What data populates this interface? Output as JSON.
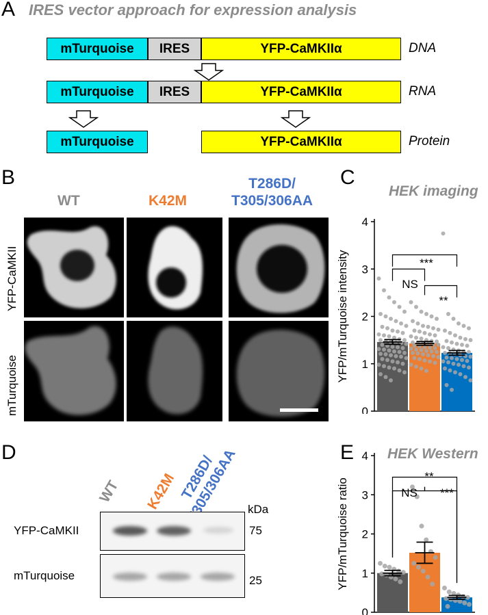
{
  "panelA": {
    "letter": "A",
    "title": "IRES vector approach for expression analysis",
    "rows": [
      {
        "label": "DNA",
        "segments": [
          "mTurquoise",
          "IRES",
          "YFP-CaMKIIα"
        ]
      },
      {
        "label": "RNA",
        "segments": [
          "mTurquoise",
          "IRES",
          "YFP-CaMKIIα"
        ]
      },
      {
        "label": "Protein",
        "segments": [
          "mTurquoise",
          "YFP-CaMKIIα"
        ]
      }
    ]
  },
  "panelB": {
    "letter": "B",
    "conditions": [
      {
        "name": "WT",
        "color": "#8c8c8c"
      },
      {
        "name": "K42M",
        "color": "#ed7d31"
      },
      {
        "name": "T286D/\nT305/306AA",
        "color": "#4472c4"
      }
    ],
    "row_labels": [
      "YFP-CaMKII",
      "mTurquoise"
    ]
  },
  "panelC": {
    "letter": "C",
    "title": "HEK imaging",
    "significance": [
      "***",
      "NS",
      "**"
    ]
  },
  "panelD": {
    "letter": "D",
    "lanes": [
      {
        "name": "WT",
        "color": "#8c8c8c"
      },
      {
        "name": "K42M",
        "color": "#ed7d31"
      },
      {
        "name": "T286D/\nT305/306AA",
        "color": "#4472c4"
      }
    ],
    "unit": "kDa",
    "rows": [
      {
        "label": "YFP-CaMKII",
        "marker": "75",
        "intensity": [
          0.85,
          0.8,
          0.15
        ]
      },
      {
        "label": "mTurquoise",
        "marker": "25",
        "intensity": [
          0.45,
          0.45,
          0.45
        ]
      }
    ]
  },
  "panelE": {
    "letter": "E",
    "title": "HEK Western",
    "significance": [
      "**",
      "NS",
      "***"
    ]
  },
  "chart_data": [
    {
      "type": "bar",
      "title": "HEK imaging",
      "ylabel": "YFP/mTurquoise intensity",
      "categories": [
        "WT",
        "K42M",
        "T286D/T305/306AA"
      ],
      "values": [
        1.46,
        1.43,
        1.23
      ],
      "errors": [
        0.05,
        0.04,
        0.05
      ],
      "colors": [
        "#595959",
        "#ed7d31",
        "#0070c0"
      ],
      "ylim": [
        0,
        4
      ],
      "yticks": [
        "0",
        "1",
        "2",
        "3",
        "4"
      ],
      "points": [
        [
          2.8,
          2.55,
          2.4,
          2.3,
          2.2,
          2.1,
          2.05,
          2.0,
          1.95,
          1.9,
          1.85,
          1.8,
          1.78,
          1.75,
          1.7,
          1.68,
          1.65,
          1.62,
          1.6,
          1.58,
          1.55,
          1.52,
          1.5,
          1.5,
          1.48,
          1.46,
          1.45,
          1.44,
          1.42,
          1.4,
          1.38,
          1.36,
          1.35,
          1.33,
          1.31,
          1.3,
          1.28,
          1.26,
          1.25,
          1.23,
          1.21,
          1.2,
          1.18,
          1.16,
          1.15,
          1.12,
          1.1,
          1.08,
          1.05,
          1.03,
          1.0,
          0.98,
          0.95,
          0.92,
          0.9,
          0.86,
          0.82,
          0.78,
          0.72,
          0.65
        ],
        [
          2.3,
          2.2,
          2.1,
          2.05,
          2.0,
          1.95,
          1.9,
          1.85,
          1.8,
          1.78,
          1.75,
          1.72,
          1.7,
          1.68,
          1.65,
          1.62,
          1.6,
          1.58,
          1.55,
          1.53,
          1.5,
          1.48,
          1.47,
          1.45,
          1.44,
          1.43,
          1.42,
          1.41,
          1.4,
          1.38,
          1.37,
          1.35,
          1.34,
          1.33,
          1.32,
          1.3,
          1.29,
          1.27,
          1.26,
          1.25,
          1.23,
          1.22,
          1.2,
          1.18,
          1.16,
          1.14,
          1.12,
          1.1,
          1.07,
          1.05,
          1.02,
          0.98,
          0.94,
          0.9,
          0.85
        ],
        [
          3.75,
          2.05,
          1.95,
          1.85,
          1.8,
          1.75,
          1.7,
          1.65,
          1.6,
          1.55,
          1.52,
          1.5,
          1.48,
          1.45,
          1.42,
          1.4,
          1.38,
          1.35,
          1.33,
          1.3,
          1.28,
          1.26,
          1.25,
          1.23,
          1.22,
          1.2,
          1.18,
          1.16,
          1.15,
          1.13,
          1.12,
          1.1,
          1.08,
          1.06,
          1.05,
          1.03,
          1.0,
          0.98,
          0.95,
          0.92,
          0.9,
          0.86,
          0.82,
          0.78,
          0.72,
          0.65,
          0.55,
          0.45
        ]
      ]
    },
    {
      "type": "bar",
      "title": "HEK Western",
      "ylabel": "YFP/mTurquoise ratio",
      "categories": [
        "WT",
        "K42M",
        "T286D/T305/306AA"
      ],
      "values": [
        1.0,
        1.52,
        0.38
      ],
      "errors": [
        0.07,
        0.27,
        0.05
      ],
      "colors": [
        "#595959",
        "#ed7d31",
        "#0070c0"
      ],
      "ylim": [
        0,
        4
      ],
      "yticks": [
        "0",
        "1",
        "2",
        "3",
        "4"
      ],
      "points": [
        [
          1.25,
          1.18,
          1.15,
          1.1,
          1.05,
          1.02,
          0.98,
          0.95,
          0.9,
          0.85,
          0.78
        ],
        [
          3.2,
          2.95,
          2.2,
          1.85,
          1.55,
          1.4,
          1.25,
          1.15,
          1.05,
          0.9,
          0.72
        ],
        [
          0.62,
          0.52,
          0.48,
          0.44,
          0.4,
          0.38,
          0.35,
          0.33,
          0.3,
          0.28,
          0.24,
          0.2,
          0.15
        ]
      ]
    }
  ]
}
